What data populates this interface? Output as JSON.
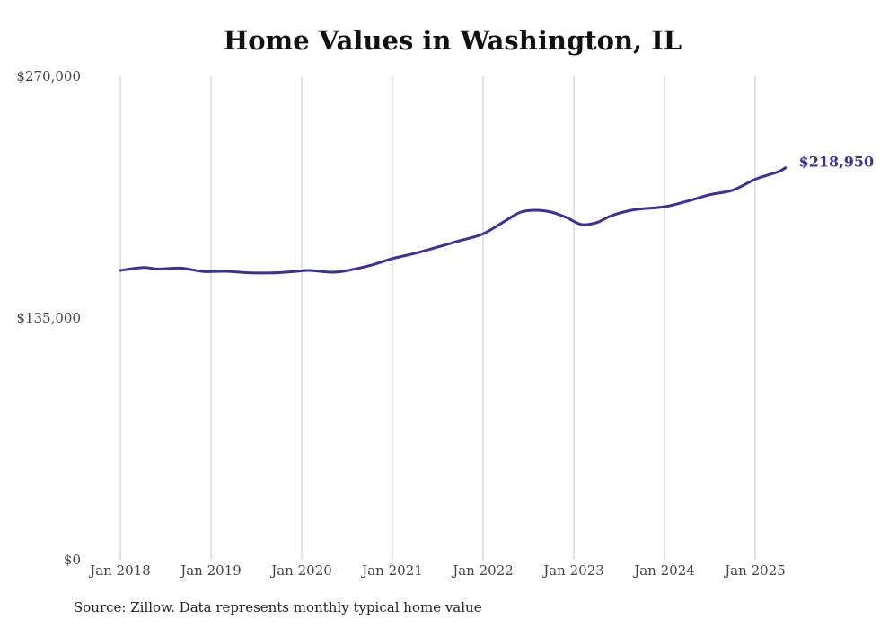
{
  "chart_data": {
    "type": "line",
    "title": "Home Values in Washington, IL",
    "xlabel": "",
    "ylabel": "",
    "ylim": [
      0,
      270000
    ],
    "y_ticks": [
      {
        "value": 0,
        "label": "$0"
      },
      {
        "value": 135000,
        "label": "$135,000"
      },
      {
        "value": 270000,
        "label": "$270,000"
      }
    ],
    "x_ticks": [
      {
        "value": "2018-01",
        "label": "Jan 2018"
      },
      {
        "value": "2019-01",
        "label": "Jan 2019"
      },
      {
        "value": "2020-01",
        "label": "Jan 2020"
      },
      {
        "value": "2021-01",
        "label": "Jan 2021"
      },
      {
        "value": "2022-01",
        "label": "Jan 2022"
      },
      {
        "value": "2023-01",
        "label": "Jan 2023"
      },
      {
        "value": "2024-01",
        "label": "Jan 2024"
      },
      {
        "value": "2025-01",
        "label": "Jan 2025"
      }
    ],
    "grid": "vertical",
    "line_color": "#3b3196",
    "end_label": "$218,950",
    "series": [
      {
        "points": [
          {
            "x": "2018-01",
            "y": 161600
          },
          {
            "x": "2018-04",
            "y": 163200
          },
          {
            "x": "2018-06",
            "y": 162400
          },
          {
            "x": "2018-09",
            "y": 162900
          },
          {
            "x": "2018-12",
            "y": 161000
          },
          {
            "x": "2019-03",
            "y": 161100
          },
          {
            "x": "2019-06",
            "y": 160300
          },
          {
            "x": "2019-09",
            "y": 160200
          },
          {
            "x": "2019-12",
            "y": 161000
          },
          {
            "x": "2020-02",
            "y": 161600
          },
          {
            "x": "2020-05",
            "y": 160600
          },
          {
            "x": "2020-07",
            "y": 161500
          },
          {
            "x": "2020-10",
            "y": 164300
          },
          {
            "x": "2021-01",
            "y": 168200
          },
          {
            "x": "2021-04",
            "y": 171200
          },
          {
            "x": "2021-07",
            "y": 174700
          },
          {
            "x": "2021-10",
            "y": 178300
          },
          {
            "x": "2022-01",
            "y": 182000
          },
          {
            "x": "2022-04",
            "y": 189500
          },
          {
            "x": "2022-06",
            "y": 194200
          },
          {
            "x": "2022-08",
            "y": 195200
          },
          {
            "x": "2022-10",
            "y": 194200
          },
          {
            "x": "2022-12",
            "y": 191200
          },
          {
            "x": "2023-02",
            "y": 187300
          },
          {
            "x": "2023-04",
            "y": 188300
          },
          {
            "x": "2023-06",
            "y": 192200
          },
          {
            "x": "2023-09",
            "y": 195500
          },
          {
            "x": "2024-01",
            "y": 197200
          },
          {
            "x": "2024-04",
            "y": 200300
          },
          {
            "x": "2024-07",
            "y": 203900
          },
          {
            "x": "2024-10",
            "y": 206400
          },
          {
            "x": "2025-01",
            "y": 212500
          },
          {
            "x": "2025-04",
            "y": 216600
          },
          {
            "x": "2025-05",
            "y": 218950
          }
        ]
      }
    ]
  },
  "source_note": "Source: Zillow. Data represents monthly typical home value"
}
